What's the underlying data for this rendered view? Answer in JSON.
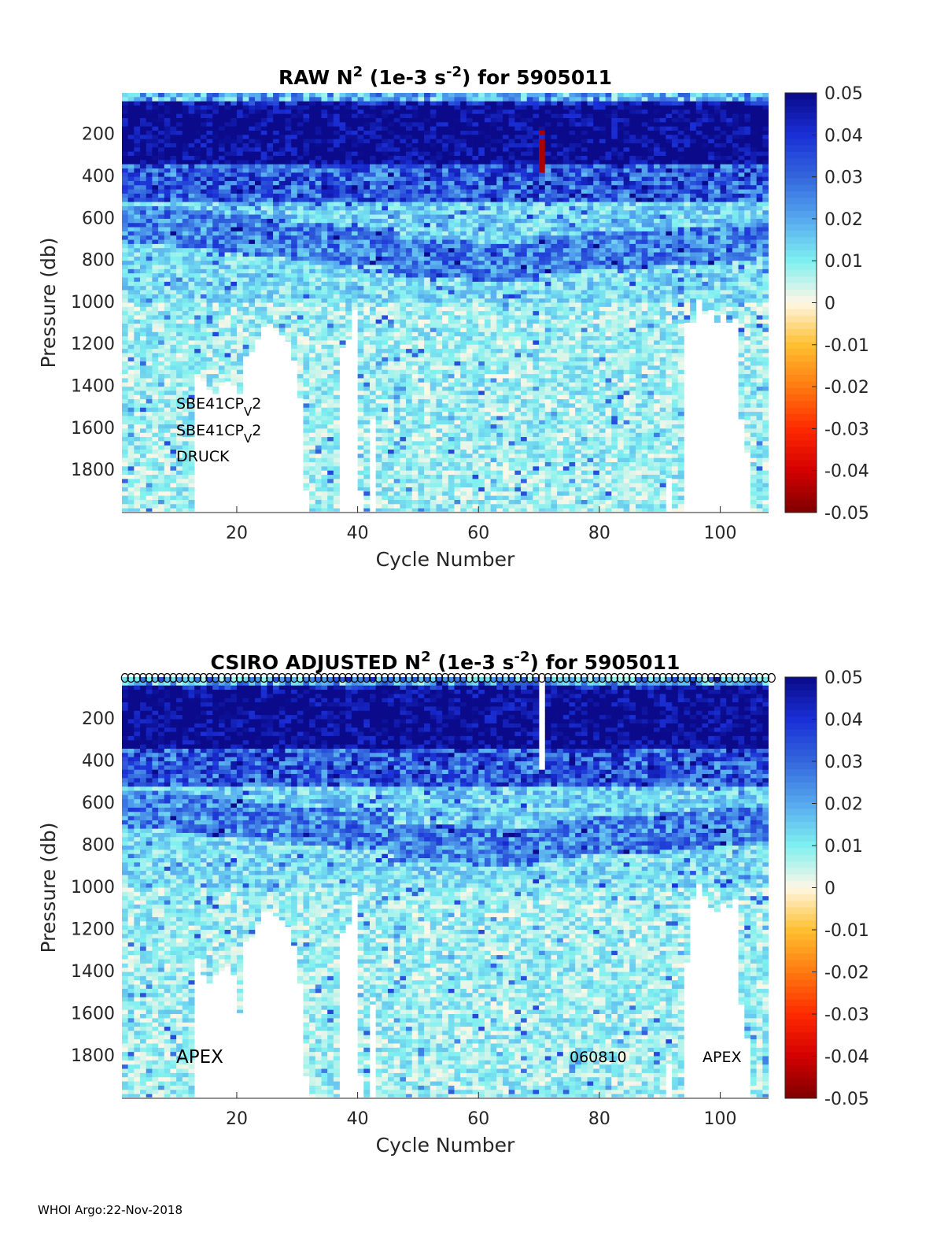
{
  "chart_data": [
    {
      "type": "heatmap",
      "id": "raw",
      "title_parts": [
        "RAW N",
        "2",
        " (1e-3 s",
        "-2",
        ") for 5905011"
      ],
      "xlabel": "Cycle Number",
      "ylabel": "Pressure (db)",
      "xlim": [
        1,
        108
      ],
      "ylim": [
        2000,
        0
      ],
      "y_reversed": true,
      "xticks": [
        20,
        40,
        60,
        80,
        100
      ],
      "yticks": [
        200,
        400,
        600,
        800,
        1000,
        1200,
        1400,
        1600,
        1800
      ],
      "colorbar": {
        "range": [
          -0.05,
          0.05
        ],
        "ticks": [
          "0.05",
          "0.04",
          "0.03",
          "0.02",
          "0.01",
          "0",
          "-0.01",
          "-0.02",
          "-0.03",
          "-0.04",
          "-0.05"
        ]
      },
      "annotations": [
        {
          "text": "SBE41CP",
          "sub": "V",
          "tail": "2"
        },
        {
          "text": "SBE41CP",
          "sub": "V",
          "tail": "2"
        },
        {
          "text": "DRUCK"
        }
      ],
      "profile_max_pressure": {
        "13": 1360,
        "14": 1380,
        "15": 1420,
        "16": 1440,
        "17": 1400,
        "18": 1380,
        "19": 1400,
        "20": 1440,
        "21": 1260,
        "22": 1240,
        "23": 1180,
        "24": 1120,
        "25": 1120,
        "26": 1140,
        "27": 1160,
        "28": 1190,
        "29": 1280,
        "30": 1460,
        "31": 1900,
        "37": 1220,
        "38": 1180,
        "39": 1040,
        "40": 1900,
        "41": 2000,
        "42": 1560,
        "91": 1840,
        "94": 1100,
        "95": 1100,
        "96": 990,
        "97": 1060,
        "98": 1040,
        "99": 1100,
        "100": 1060,
        "101": 1100,
        "102": 1080,
        "103": 1560,
        "104": 1720
      },
      "missing_top_cycles": {},
      "structure": {
        "surface_mixed_db": 60,
        "strong_layer_db": [
          90,
          330
        ],
        "strong_value": 0.05,
        "mid_layer_db": [
          330,
          520
        ],
        "mid_value": 0.032,
        "thermocline2_db": [
          580,
          760
        ],
        "thermocline2_value": 0.026,
        "deep_value": 0.008,
        "anomaly_cycle": 70,
        "anomaly_db": [
          150,
          420
        ],
        "anomaly_value": -0.045
      }
    },
    {
      "type": "heatmap",
      "id": "adjusted",
      "title_parts": [
        "CSIRO  ADJUSTED N",
        "2",
        " (1e-3 s",
        "-2",
        ") for 5905011"
      ],
      "xlabel": "Cycle Number",
      "ylabel": "Pressure (db)",
      "xlim": [
        1,
        108
      ],
      "ylim": [
        2000,
        0
      ],
      "y_reversed": true,
      "xticks": [
        20,
        40,
        60,
        80,
        100
      ],
      "yticks": [
        200,
        400,
        600,
        800,
        1000,
        1200,
        1400,
        1600,
        1800
      ],
      "colorbar": {
        "range": [
          -0.05,
          0.05
        ],
        "ticks": [
          "0.05",
          "0.04",
          "0.03",
          "0.02",
          "0.01",
          "0",
          "-0.01",
          "-0.02",
          "-0.03",
          "-0.04",
          "-0.05"
        ]
      },
      "annotations": [
        {
          "text": "APEX"
        },
        {
          "text": "060810"
        },
        {
          "text": "APEX"
        }
      ],
      "qc_markers": "open circles at each cycle along surface",
      "profile_max_pressure": {
        "13": 1340,
        "14": 1420,
        "15": 1460,
        "16": 1420,
        "17": 1400,
        "18": 1380,
        "19": 1420,
        "20": 1600,
        "21": 1260,
        "22": 1240,
        "23": 1180,
        "24": 1120,
        "25": 1120,
        "26": 1140,
        "27": 1160,
        "28": 1190,
        "29": 1280,
        "30": 1460,
        "31": 1900,
        "37": 1220,
        "38": 1180,
        "39": 1040,
        "40": 1900,
        "41": 2000,
        "42": 1560,
        "91": 1840,
        "94": 1360,
        "95": 1060,
        "96": 990,
        "97": 1060,
        "98": 1100,
        "99": 1120,
        "100": 1080,
        "101": 1100,
        "102": 1060,
        "103": 1560,
        "104": 1720
      },
      "missing_top_cycles": {
        "70": 440
      },
      "structure": {
        "surface_mixed_db": 60,
        "strong_layer_db": [
          90,
          330
        ],
        "strong_value": 0.05,
        "mid_layer_db": [
          330,
          520
        ],
        "mid_value": 0.032,
        "thermocline2_db": [
          580,
          760
        ],
        "thermocline2_value": 0.026,
        "deep_value": 0.008
      }
    }
  ],
  "colors": {
    "colormap": [
      "#7f0000",
      "#d40000",
      "#ff2a00",
      "#ff7a10",
      "#ffc030",
      "#fff7e6",
      "#7ff0f0",
      "#55a8ee",
      "#3366dd",
      "#1a2fd6",
      "#0a0a8a"
    ]
  },
  "footer": "WHOI Argo:22-Nov-2018"
}
